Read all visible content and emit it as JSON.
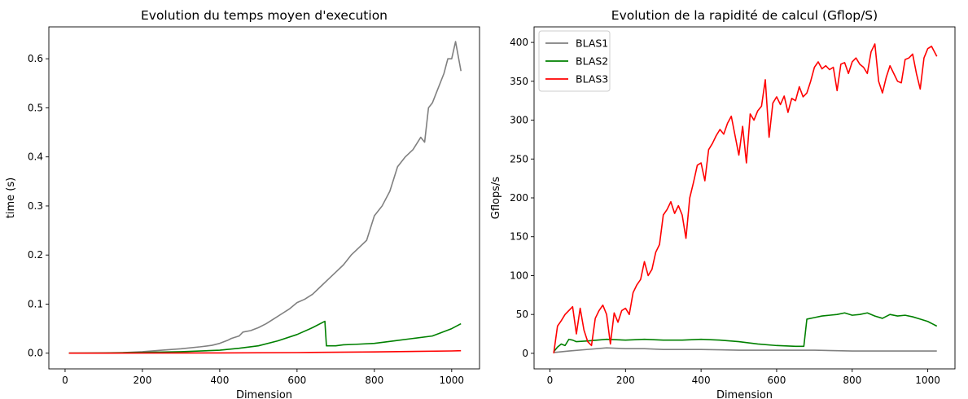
{
  "chart_data": [
    {
      "type": "line",
      "title": "Evolution du temps moyen d'execution",
      "xlabel": "Dimension",
      "ylabel": "time (s)",
      "xlim": [
        -42,
        1072
      ],
      "ylim": [
        -0.032,
        0.665
      ],
      "xticks": [
        0,
        200,
        400,
        600,
        800,
        1000
      ],
      "xtick_labels": [
        "0",
        "200",
        "400",
        "600",
        "800",
        "1000"
      ],
      "yticks": [
        0.0,
        0.1,
        0.2,
        0.3,
        0.4,
        0.5,
        0.6
      ],
      "ytick_labels": [
        "0.0",
        "0.1",
        "0.2",
        "0.3",
        "0.4",
        "0.5",
        "0.6"
      ],
      "legend": null,
      "grid": false,
      "series": [
        {
          "color": "#808080",
          "x": [
            10,
            50,
            100,
            150,
            200,
            250,
            300,
            350,
            380,
            400,
            420,
            430,
            450,
            460,
            480,
            500,
            520,
            540,
            560,
            580,
            600,
            620,
            640,
            660,
            680,
            700,
            720,
            740,
            760,
            780,
            800,
            820,
            840,
            860,
            880,
            900,
            920,
            930,
            940,
            950,
            960,
            980,
            990,
            1000,
            1010,
            1024
          ],
          "y": [
            0.0,
            0.0,
            0.0005,
            0.001,
            0.003,
            0.006,
            0.009,
            0.013,
            0.016,
            0.02,
            0.026,
            0.03,
            0.035,
            0.043,
            0.046,
            0.052,
            0.06,
            0.07,
            0.08,
            0.09,
            0.103,
            0.11,
            0.12,
            0.135,
            0.15,
            0.165,
            0.18,
            0.2,
            0.215,
            0.23,
            0.28,
            0.3,
            0.33,
            0.38,
            0.4,
            0.415,
            0.44,
            0.43,
            0.5,
            0.51,
            0.53,
            0.57,
            0.6,
            0.6,
            0.635,
            0.575
          ]
        },
        {
          "color": "#008000",
          "x": [
            10,
            100,
            200,
            300,
            400,
            450,
            500,
            550,
            600,
            640,
            672,
            676,
            700,
            720,
            750,
            800,
            850,
            900,
            950,
            1000,
            1024
          ],
          "y": [
            0.0,
            0.0002,
            0.0015,
            0.003,
            0.006,
            0.01,
            0.015,
            0.025,
            0.038,
            0.052,
            0.065,
            0.015,
            0.015,
            0.017,
            0.018,
            0.02,
            0.025,
            0.03,
            0.035,
            0.05,
            0.06
          ]
        },
        {
          "color": "#ff0000",
          "x": [
            10,
            200,
            400,
            600,
            800,
            1000,
            1024
          ],
          "y": [
            0.0,
            0.0002,
            0.0005,
            0.0012,
            0.0025,
            0.0045,
            0.005
          ]
        }
      ]
    },
    {
      "type": "line",
      "title": "Evolution de la rapidité de calcul (Gflop/S)",
      "xlabel": "Dimension",
      "ylabel": "Gflops/s",
      "xlim": [
        -42,
        1072
      ],
      "ylim": [
        -20,
        420
      ],
      "xticks": [
        0,
        200,
        400,
        600,
        800,
        1000
      ],
      "xtick_labels": [
        "0",
        "200",
        "400",
        "600",
        "800",
        "1000"
      ],
      "yticks": [
        0,
        50,
        100,
        150,
        200,
        250,
        300,
        350,
        400
      ],
      "ytick_labels": [
        "0",
        "50",
        "100",
        "150",
        "200",
        "250",
        "300",
        "350",
        "400"
      ],
      "legend": "upper left",
      "grid": false,
      "series": [
        {
          "name": "BLAS1",
          "color": "#808080",
          "x": [
            10,
            50,
            100,
            150,
            200,
            250,
            300,
            400,
            500,
            600,
            700,
            800,
            900,
            1000,
            1024
          ],
          "y": [
            1,
            3,
            5,
            7,
            6,
            6,
            5,
            5,
            4,
            4,
            4,
            3,
            3,
            3,
            3
          ]
        },
        {
          "name": "BLAS2",
          "color": "#008000",
          "x": [
            10,
            20,
            30,
            40,
            50,
            60,
            70,
            100,
            150,
            200,
            250,
            300,
            350,
            400,
            450,
            500,
            550,
            600,
            650,
            672,
            680,
            700,
            720,
            740,
            760,
            780,
            800,
            820,
            840,
            860,
            880,
            900,
            920,
            940,
            960,
            980,
            1000,
            1024
          ],
          "y": [
            2,
            8,
            12,
            10,
            18,
            17,
            15,
            16,
            18,
            17,
            18,
            17,
            17,
            18,
            17,
            15,
            12,
            10,
            9,
            9,
            44,
            46,
            48,
            49,
            50,
            52,
            49,
            50,
            52,
            48,
            45,
            50,
            48,
            49,
            47,
            44,
            41,
            35
          ]
        },
        {
          "name": "BLAS3",
          "color": "#ff0000",
          "x": [
            10,
            20,
            30,
            40,
            50,
            60,
            70,
            80,
            90,
            100,
            110,
            120,
            130,
            140,
            150,
            160,
            170,
            180,
            190,
            200,
            210,
            220,
            230,
            240,
            250,
            260,
            270,
            280,
            290,
            300,
            310,
            320,
            330,
            340,
            350,
            360,
            370,
            380,
            390,
            400,
            410,
            420,
            430,
            440,
            450,
            460,
            470,
            480,
            490,
            500,
            510,
            520,
            530,
            540,
            550,
            560,
            570,
            580,
            590,
            600,
            610,
            620,
            630,
            640,
            650,
            660,
            670,
            680,
            690,
            700,
            710,
            720,
            730,
            740,
            750,
            760,
            770,
            780,
            790,
            800,
            810,
            820,
            830,
            840,
            850,
            860,
            870,
            880,
            890,
            900,
            910,
            920,
            930,
            940,
            950,
            960,
            970,
            980,
            990,
            1000,
            1010,
            1024
          ],
          "y": [
            0,
            35,
            42,
            50,
            55,
            60,
            25,
            58,
            30,
            15,
            10,
            45,
            55,
            62,
            50,
            12,
            52,
            40,
            55,
            58,
            50,
            78,
            88,
            95,
            118,
            100,
            108,
            130,
            140,
            178,
            185,
            195,
            180,
            190,
            178,
            148,
            200,
            220,
            242,
            245,
            222,
            262,
            270,
            280,
            288,
            282,
            296,
            305,
            280,
            255,
            292,
            245,
            308,
            300,
            312,
            318,
            352,
            278,
            322,
            330,
            320,
            331,
            310,
            328,
            325,
            343,
            330,
            335,
            350,
            368,
            375,
            366,
            370,
            365,
            368,
            338,
            372,
            374,
            360,
            375,
            380,
            372,
            368,
            360,
            388,
            398,
            350,
            335,
            355,
            370,
            360,
            350,
            348,
            378,
            380,
            385,
            360,
            340,
            380,
            392,
            395,
            382
          ]
        }
      ]
    }
  ]
}
